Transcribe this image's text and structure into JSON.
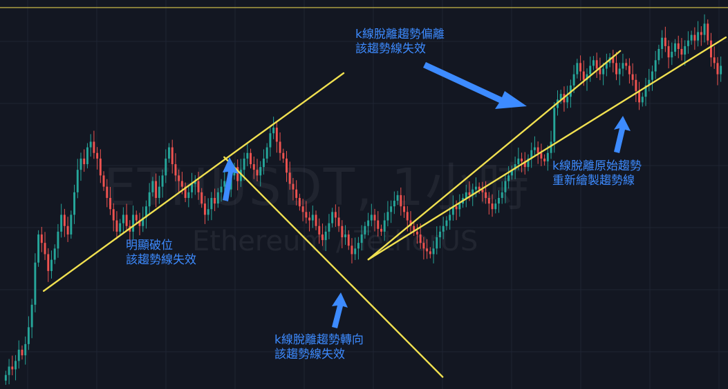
{
  "chart_data": {
    "type": "candlestick",
    "symbol_watermark": "ETHUSDT, 1小時",
    "name_watermark": "Ethereum / TetherUS",
    "colors": {
      "background": "#131722",
      "grid": "#1f2433",
      "up": "#26a69a",
      "down": "#ef5350",
      "trendline": "#f0e050",
      "annotation": "#3d8bff",
      "top_border": "#c9b84a"
    },
    "ylim": [
      0,
      100
    ],
    "grid": true,
    "candles_close": [
      5,
      8,
      7,
      10,
      14,
      12,
      16,
      22,
      30,
      45,
      55,
      52,
      48,
      42,
      46,
      50,
      56,
      62,
      58,
      55,
      62,
      70,
      78,
      82,
      80,
      86,
      88,
      84,
      82,
      76,
      72,
      68,
      64,
      60,
      56,
      59,
      62,
      58,
      56,
      62,
      60,
      58,
      61,
      65,
      70,
      74,
      68,
      72,
      76,
      82,
      86,
      80,
      76,
      74,
      72,
      68,
      70,
      73,
      74,
      70,
      66,
      62,
      64,
      68,
      66,
      70,
      72,
      74,
      71,
      76,
      79,
      74,
      78,
      82,
      84,
      80,
      78,
      76,
      79,
      82,
      86,
      91,
      93,
      88,
      84,
      82,
      77,
      73,
      71,
      68,
      65,
      63,
      61,
      60,
      62,
      58,
      55,
      53,
      56,
      59,
      63,
      61,
      58,
      54,
      55,
      51,
      48,
      50,
      52,
      55,
      58,
      60,
      62,
      60,
      57,
      56,
      60,
      63,
      65,
      67,
      69,
      65,
      63,
      60,
      58,
      56,
      55,
      52,
      50,
      49,
      48,
      50,
      54,
      56,
      58,
      60,
      62,
      65,
      64,
      66,
      68,
      70,
      69,
      71,
      72,
      71,
      70,
      68,
      66,
      64,
      66,
      68,
      70,
      74,
      76,
      78,
      80,
      82,
      81,
      79,
      82,
      85,
      86,
      84,
      82,
      81,
      84,
      88,
      100,
      103,
      105,
      102,
      104,
      108,
      112,
      116,
      113,
      110,
      112,
      115,
      117,
      114,
      112,
      114,
      116,
      118,
      116,
      112,
      114,
      116,
      115,
      112,
      110,
      106,
      102,
      104,
      108,
      110,
      113,
      117,
      121,
      125,
      122,
      118,
      120,
      123,
      121,
      119,
      122,
      124,
      126,
      124,
      127,
      126,
      130,
      124,
      118,
      116,
      112,
      115
    ],
    "trendlines": [
      {
        "from": [
          0.06,
          0.748
        ],
        "to": [
          0.472,
          0.188
        ]
      },
      {
        "from": [
          0.308,
          0.404
        ],
        "to": [
          0.608,
          0.969
        ]
      },
      {
        "from": [
          0.506,
          0.667
        ],
        "to": [
          0.852,
          0.131
        ]
      },
      {
        "from": [
          0.506,
          0.667
        ],
        "to": [
          0.997,
          0.096
        ]
      }
    ],
    "annotations": [
      {
        "lines": [
          "明顯破位",
          "該趨勢線失效"
        ]
      },
      {
        "lines": [
          "k線脫離趨勢轉向",
          "該趨勢線失效"
        ]
      },
      {
        "lines": [
          "k線脫離趨勢偏離",
          "該趨勢線失效"
        ]
      },
      {
        "lines": [
          "k線脫離原始趨勢",
          "重新繪製趨勢線"
        ]
      }
    ]
  }
}
